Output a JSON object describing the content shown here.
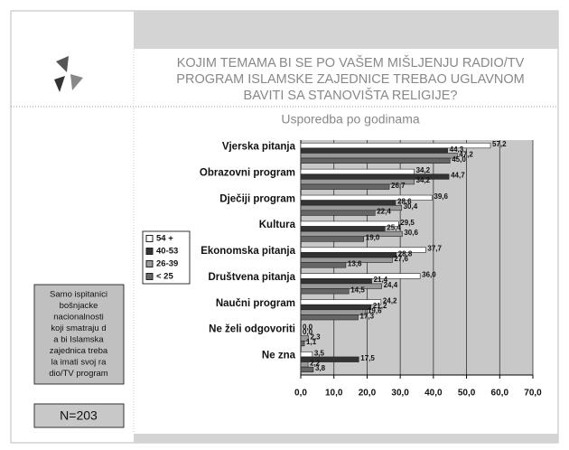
{
  "chart_data": {
    "type": "bar",
    "orientation": "horizontal",
    "title_lines": [
      "KOJIM TEMAMA BI SE PO VAŠEM MIŠLJENJU RADIO/TV",
      "PROGRAM ISLAMSKE ZAJEDNICE TREBAO UGLAVNOM",
      "BAVITI  SA STANOVIŠTA RELIGIJE?"
    ],
    "subtitle": "Usporedba po godinama",
    "categories": [
      "Vjerska pitanja",
      "Obrazovni program",
      "Dječiji program",
      "Kultura",
      "Ekonomska pitanja",
      "Društvena pitanja",
      "Naučni program",
      "Ne želi odgovoriti",
      "Ne zna"
    ],
    "series": [
      {
        "name": "54 +",
        "color": "#ffffff",
        "values": [
          57.2,
          34.2,
          39.6,
          29.5,
          37.7,
          36.0,
          24.2,
          0.0,
          3.5
        ],
        "value_labels": [
          "57,2",
          "34,2",
          "39,6",
          "29,5",
          "37,7",
          "36,0",
          "24,2",
          "0,0",
          "3,5"
        ]
      },
      {
        "name": "40-53",
        "color": "#333333",
        "values": [
          44.3,
          44.7,
          28.6,
          25.4,
          28.8,
          21.4,
          21.2,
          0.0,
          17.5
        ],
        "value_labels": [
          "44,3",
          "44,7",
          "28,6",
          "25,4",
          "28,8",
          "21,4",
          "21,2",
          "0,0",
          "17,5"
        ]
      },
      {
        "name": "26-39",
        "color": "#999999",
        "values": [
          47.2,
          34.2,
          30.4,
          30.6,
          27.6,
          24.4,
          19.6,
          2.3,
          2.2
        ],
        "value_labels": [
          "47,2",
          "34,2",
          "30,4",
          "30,6",
          "27,6",
          "24,4",
          "19,6",
          "2,3",
          "2,2"
        ]
      },
      {
        "name": "< 25",
        "color": "#666666",
        "values": [
          45.0,
          26.7,
          22.4,
          19.0,
          13.6,
          14.5,
          17.3,
          1.1,
          3.8
        ],
        "value_labels": [
          "45,0",
          "26,7",
          "22,4",
          "19,0",
          "13,6",
          "14,5",
          "17,3",
          "1,1",
          "3,8"
        ]
      }
    ],
    "xlim": [
      0,
      70
    ],
    "xticks": [
      {
        "value": 0,
        "label": "0,0"
      },
      {
        "value": 10,
        "label": "10,0"
      },
      {
        "value": 20,
        "label": "20,0"
      },
      {
        "value": 30,
        "label": "30,0"
      },
      {
        "value": 40,
        "label": "40,0"
      },
      {
        "value": 50,
        "label": "50,0"
      },
      {
        "value": 60,
        "label": "60,0"
      },
      {
        "value": 70,
        "label": "70,0"
      }
    ],
    "grid": true,
    "legend": "left",
    "plot_background": "#c8c8c8"
  },
  "panel": {
    "note_lines": [
      "Samo ispitanici",
      "bošnjacke",
      "nacionalnosti",
      "koji smatraju d",
      "a bi Islamska",
      "zajednica treba",
      "la imati svoj ra",
      "dio/TV program"
    ],
    "sample": "N=203"
  }
}
